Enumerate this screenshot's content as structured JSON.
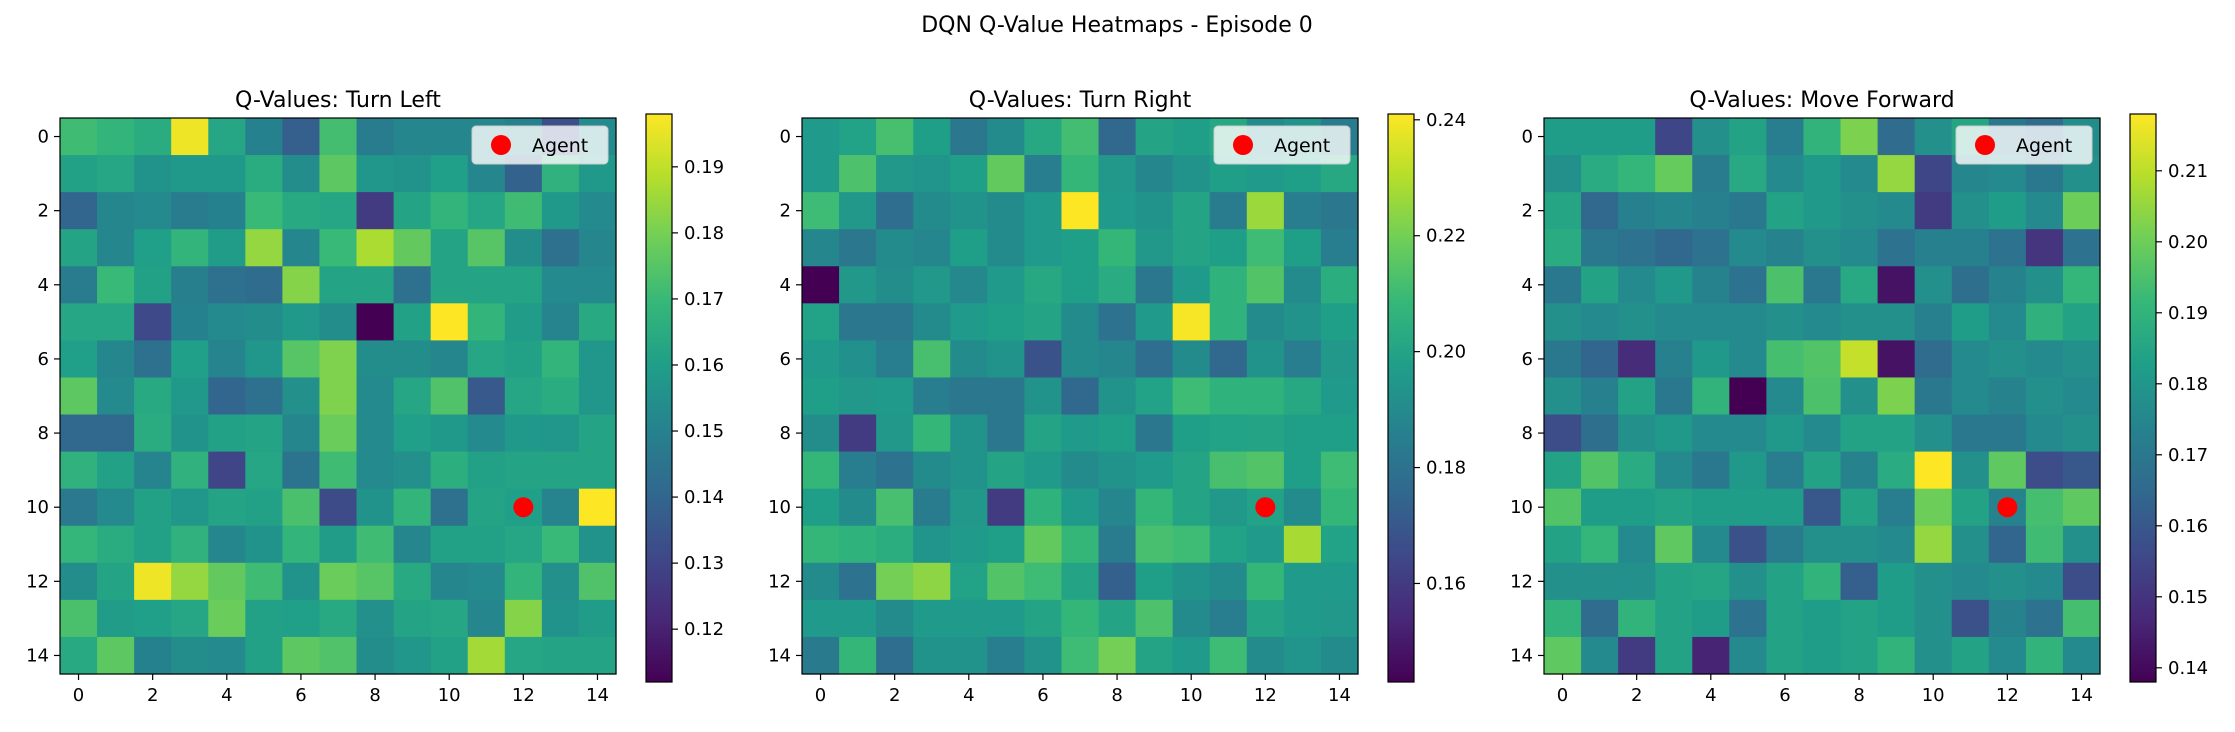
{
  "figure": {
    "suptitle": "DQN Q-Value Heatmaps - Episode 0",
    "legend_label": "Agent",
    "agent_color": "#ff0000",
    "colormap": "viridis"
  },
  "chart_data": [
    {
      "type": "heatmap",
      "title": "Q-Values: Turn Left",
      "grid_size": 15,
      "x_ticks": [
        "0",
        "2",
        "4",
        "6",
        "8",
        "10",
        "12",
        "14"
      ],
      "y_ticks": [
        "0",
        "2",
        "4",
        "6",
        "8",
        "10",
        "12",
        "14"
      ],
      "agent": {
        "col": 12,
        "row": 10
      },
      "legend": {
        "label": "Agent",
        "placement": "upper right"
      },
      "colorbar": {
        "vmin": 0.112,
        "vmax": 0.198,
        "ticks": [
          "0.12",
          "0.13",
          "0.14",
          "0.15",
          "0.16",
          "0.17",
          "0.18",
          "0.19"
        ]
      },
      "values": [
        [
          0.171,
          0.168,
          0.165,
          0.196,
          0.163,
          0.15,
          0.138,
          0.172,
          0.148,
          0.152,
          0.152,
          0.152,
          0.15,
          0.133,
          0.153
        ],
        [
          0.161,
          0.163,
          0.156,
          0.158,
          0.158,
          0.165,
          0.154,
          0.176,
          0.157,
          0.156,
          0.16,
          0.152,
          0.139,
          0.167,
          0.158
        ],
        [
          0.14,
          0.152,
          0.153,
          0.148,
          0.15,
          0.17,
          0.164,
          0.163,
          0.127,
          0.162,
          0.168,
          0.163,
          0.171,
          0.158,
          0.153
        ],
        [
          0.162,
          0.152,
          0.16,
          0.168,
          0.159,
          0.184,
          0.152,
          0.17,
          0.187,
          0.177,
          0.162,
          0.175,
          0.154,
          0.144,
          0.152
        ],
        [
          0.148,
          0.17,
          0.161,
          0.149,
          0.144,
          0.142,
          0.182,
          0.162,
          0.162,
          0.144,
          0.162,
          0.162,
          0.162,
          0.153,
          0.153
        ],
        [
          0.163,
          0.163,
          0.131,
          0.15,
          0.153,
          0.154,
          0.158,
          0.154,
          0.112,
          0.161,
          0.198,
          0.168,
          0.159,
          0.151,
          0.164
        ],
        [
          0.16,
          0.152,
          0.144,
          0.16,
          0.151,
          0.157,
          0.175,
          0.181,
          0.154,
          0.154,
          0.152,
          0.163,
          0.161,
          0.168,
          0.157
        ],
        [
          0.176,
          0.153,
          0.164,
          0.158,
          0.14,
          0.144,
          0.155,
          0.181,
          0.153,
          0.163,
          0.174,
          0.136,
          0.163,
          0.165,
          0.157
        ],
        [
          0.141,
          0.141,
          0.165,
          0.156,
          0.161,
          0.162,
          0.152,
          0.178,
          0.153,
          0.16,
          0.158,
          0.153,
          0.158,
          0.157,
          0.162
        ],
        [
          0.167,
          0.161,
          0.151,
          0.167,
          0.13,
          0.163,
          0.145,
          0.171,
          0.153,
          0.155,
          0.166,
          0.161,
          0.162,
          0.162,
          0.162
        ],
        [
          0.147,
          0.153,
          0.161,
          0.157,
          0.162,
          0.161,
          0.173,
          0.132,
          0.156,
          0.168,
          0.144,
          0.162,
          0.16,
          0.151,
          0.198
        ],
        [
          0.169,
          0.165,
          0.161,
          0.167,
          0.152,
          0.156,
          0.168,
          0.159,
          0.171,
          0.152,
          0.161,
          0.161,
          0.163,
          0.17,
          0.156
        ],
        [
          0.154,
          0.162,
          0.196,
          0.184,
          0.177,
          0.171,
          0.156,
          0.178,
          0.175,
          0.164,
          0.152,
          0.153,
          0.168,
          0.155,
          0.174
        ],
        [
          0.173,
          0.159,
          0.16,
          0.163,
          0.178,
          0.161,
          0.16,
          0.164,
          0.155,
          0.162,
          0.163,
          0.152,
          0.182,
          0.156,
          0.159
        ],
        [
          0.164,
          0.176,
          0.15,
          0.154,
          0.153,
          0.161,
          0.176,
          0.174,
          0.154,
          0.157,
          0.161,
          0.186,
          0.163,
          0.162,
          0.162
        ]
      ]
    },
    {
      "type": "heatmap",
      "title": "Q-Values: Turn Right",
      "grid_size": 15,
      "x_ticks": [
        "0",
        "2",
        "4",
        "6",
        "8",
        "10",
        "12",
        "14"
      ],
      "y_ticks": [
        "0",
        "2",
        "4",
        "6",
        "8",
        "10",
        "12",
        "14"
      ],
      "agent": {
        "col": 12,
        "row": 10
      },
      "legend": {
        "label": "Agent",
        "placement": "upper right"
      },
      "colorbar": {
        "vmin": 0.143,
        "vmax": 0.241,
        "ticks": [
          "0.16",
          "0.18",
          "0.20",
          "0.22",
          "0.24"
        ]
      },
      "values": [
        [
          0.196,
          0.199,
          0.212,
          0.198,
          0.182,
          0.19,
          0.202,
          0.211,
          0.176,
          0.2,
          0.198,
          0.202,
          0.19,
          0.193,
          0.184
        ],
        [
          0.196,
          0.213,
          0.195,
          0.194,
          0.198,
          0.217,
          0.185,
          0.208,
          0.195,
          0.188,
          0.193,
          0.198,
          0.196,
          0.198,
          0.202
        ],
        [
          0.21,
          0.195,
          0.178,
          0.19,
          0.193,
          0.19,
          0.196,
          0.241,
          0.196,
          0.193,
          0.2,
          0.184,
          0.226,
          0.185,
          0.182
        ],
        [
          0.188,
          0.182,
          0.19,
          0.188,
          0.198,
          0.19,
          0.196,
          0.198,
          0.208,
          0.195,
          0.2,
          0.198,
          0.21,
          0.198,
          0.185
        ],
        [
          0.143,
          0.195,
          0.191,
          0.195,
          0.189,
          0.196,
          0.202,
          0.198,
          0.203,
          0.182,
          0.196,
          0.206,
          0.214,
          0.19,
          0.204
        ],
        [
          0.199,
          0.182,
          0.182,
          0.19,
          0.196,
          0.198,
          0.2,
          0.19,
          0.18,
          0.196,
          0.24,
          0.206,
          0.19,
          0.193,
          0.198
        ],
        [
          0.196,
          0.192,
          0.185,
          0.212,
          0.19,
          0.193,
          0.168,
          0.19,
          0.188,
          0.178,
          0.19,
          0.176,
          0.193,
          0.185,
          0.195
        ],
        [
          0.198,
          0.195,
          0.196,
          0.185,
          0.182,
          0.182,
          0.193,
          0.176,
          0.193,
          0.199,
          0.21,
          0.206,
          0.206,
          0.202,
          0.196
        ],
        [
          0.191,
          0.16,
          0.195,
          0.208,
          0.193,
          0.182,
          0.2,
          0.196,
          0.198,
          0.182,
          0.198,
          0.199,
          0.2,
          0.198,
          0.198
        ],
        [
          0.208,
          0.185,
          0.18,
          0.19,
          0.193,
          0.2,
          0.196,
          0.19,
          0.193,
          0.196,
          0.2,
          0.212,
          0.214,
          0.198,
          0.21
        ],
        [
          0.198,
          0.19,
          0.212,
          0.184,
          0.195,
          0.16,
          0.206,
          0.196,
          0.188,
          0.208,
          0.2,
          0.195,
          0.199,
          0.19,
          0.208
        ],
        [
          0.208,
          0.206,
          0.204,
          0.194,
          0.196,
          0.198,
          0.217,
          0.208,
          0.184,
          0.212,
          0.21,
          0.199,
          0.196,
          0.228,
          0.199
        ],
        [
          0.19,
          0.18,
          0.22,
          0.224,
          0.199,
          0.214,
          0.21,
          0.2,
          0.173,
          0.198,
          0.193,
          0.19,
          0.208,
          0.196,
          0.196
        ],
        [
          0.196,
          0.196,
          0.19,
          0.196,
          0.196,
          0.196,
          0.2,
          0.208,
          0.2,
          0.213,
          0.19,
          0.185,
          0.2,
          0.196,
          0.195
        ],
        [
          0.183,
          0.208,
          0.178,
          0.193,
          0.193,
          0.185,
          0.193,
          0.21,
          0.22,
          0.2,
          0.196,
          0.21,
          0.19,
          0.194,
          0.19
        ]
      ]
    },
    {
      "type": "heatmap",
      "title": "Q-Values: Move Forward",
      "grid_size": 15,
      "x_ticks": [
        "0",
        "2",
        "4",
        "6",
        "8",
        "10",
        "12",
        "14"
      ],
      "y_ticks": [
        "0",
        "2",
        "4",
        "6",
        "8",
        "10",
        "12",
        "14"
      ],
      "agent": {
        "col": 12,
        "row": 10
      },
      "legend": {
        "label": "Agent",
        "placement": "upper right"
      },
      "colorbar": {
        "vmin": 0.138,
        "vmax": 0.218,
        "ticks": [
          "0.14",
          "0.15",
          "0.16",
          "0.17",
          "0.18",
          "0.19",
          "0.20",
          "0.21"
        ]
      },
      "values": [
        [
          0.182,
          0.182,
          0.182,
          0.155,
          0.178,
          0.184,
          0.172,
          0.19,
          0.202,
          0.166,
          0.178,
          0.185,
          0.17,
          0.166,
          0.177
        ],
        [
          0.178,
          0.187,
          0.191,
          0.199,
          0.171,
          0.186,
          0.176,
          0.181,
          0.176,
          0.205,
          0.155,
          0.175,
          0.176,
          0.17,
          0.178
        ],
        [
          0.185,
          0.165,
          0.173,
          0.175,
          0.173,
          0.17,
          0.184,
          0.181,
          0.178,
          0.176,
          0.152,
          0.178,
          0.182,
          0.176,
          0.2
        ],
        [
          0.187,
          0.17,
          0.168,
          0.165,
          0.168,
          0.176,
          0.174,
          0.178,
          0.176,
          0.168,
          0.173,
          0.173,
          0.168,
          0.15,
          0.168
        ],
        [
          0.17,
          0.184,
          0.176,
          0.181,
          0.174,
          0.168,
          0.195,
          0.17,
          0.186,
          0.142,
          0.178,
          0.167,
          0.174,
          0.178,
          0.191
        ],
        [
          0.178,
          0.176,
          0.178,
          0.176,
          0.176,
          0.176,
          0.178,
          0.176,
          0.178,
          0.178,
          0.173,
          0.182,
          0.176,
          0.189,
          0.184
        ],
        [
          0.17,
          0.164,
          0.148,
          0.173,
          0.181,
          0.176,
          0.194,
          0.196,
          0.211,
          0.142,
          0.166,
          0.176,
          0.178,
          0.176,
          0.178
        ],
        [
          0.178,
          0.173,
          0.184,
          0.17,
          0.19,
          0.138,
          0.176,
          0.195,
          0.178,
          0.202,
          0.17,
          0.176,
          0.174,
          0.178,
          0.176
        ],
        [
          0.157,
          0.167,
          0.178,
          0.181,
          0.176,
          0.176,
          0.181,
          0.176,
          0.184,
          0.184,
          0.178,
          0.17,
          0.17,
          0.176,
          0.178
        ],
        [
          0.184,
          0.196,
          0.187,
          0.176,
          0.17,
          0.181,
          0.172,
          0.184,
          0.174,
          0.187,
          0.218,
          0.178,
          0.198,
          0.157,
          0.16
        ],
        [
          0.196,
          0.182,
          0.182,
          0.184,
          0.182,
          0.182,
          0.182,
          0.16,
          0.184,
          0.172,
          0.2,
          0.184,
          0.174,
          0.194,
          0.198
        ],
        [
          0.184,
          0.191,
          0.176,
          0.198,
          0.176,
          0.158,
          0.171,
          0.178,
          0.178,
          0.176,
          0.205,
          0.178,
          0.164,
          0.193,
          0.178
        ],
        [
          0.178,
          0.178,
          0.178,
          0.184,
          0.185,
          0.178,
          0.184,
          0.19,
          0.162,
          0.182,
          0.178,
          0.176,
          0.178,
          0.176,
          0.157
        ],
        [
          0.19,
          0.166,
          0.19,
          0.184,
          0.182,
          0.168,
          0.184,
          0.182,
          0.184,
          0.182,
          0.178,
          0.158,
          0.174,
          0.168,
          0.194
        ],
        [
          0.198,
          0.176,
          0.152,
          0.184,
          0.146,
          0.176,
          0.184,
          0.182,
          0.184,
          0.19,
          0.178,
          0.184,
          0.176,
          0.19,
          0.176
        ]
      ]
    }
  ]
}
